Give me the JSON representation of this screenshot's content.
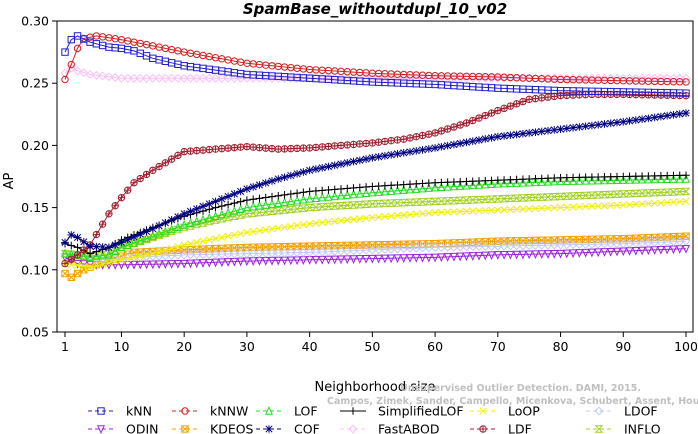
{
  "chart_data": {
    "type": "line",
    "title": "SpamBase_withoutdupl_10_v02",
    "xlabel": "Neighborhood size",
    "ylabel": "AP",
    "xlim": [
      1,
      100
    ],
    "ylim": [
      0.05,
      0.3
    ],
    "xticks": [
      1,
      10,
      20,
      30,
      40,
      50,
      60,
      70,
      80,
      90,
      100
    ],
    "yticks": [
      0.05,
      0.1,
      0.15,
      0.2,
      0.25,
      0.3
    ],
    "xtick_labels": [
      "1",
      "10",
      "20",
      "30",
      "40",
      "50",
      "60",
      "70",
      "80",
      "90",
      "100"
    ],
    "ytick_labels": [
      "0.05",
      "0.10",
      "0.15",
      "0.20",
      "0.25",
      "0.30"
    ],
    "grid": false,
    "legend_position": "bottom",
    "watermark": {
      "line1": "Unsupervised Outlier Detection. DAMI, 2015.",
      "line2": "Campos, Zimek, Sander, Campello, Micenkova, Schubert, Assent, Houle"
    },
    "series": [
      {
        "name": "kNN",
        "color": "#1f1fd0",
        "marker": "square",
        "points": [
          [
            1,
            0.275
          ],
          [
            2,
            0.285
          ],
          [
            3,
            0.288
          ],
          [
            5,
            0.283
          ],
          [
            8,
            0.279
          ],
          [
            10,
            0.278
          ],
          [
            12,
            0.276
          ],
          [
            15,
            0.27
          ],
          [
            20,
            0.264
          ],
          [
            30,
            0.257
          ],
          [
            40,
            0.254
          ],
          [
            50,
            0.251
          ],
          [
            60,
            0.249
          ],
          [
            70,
            0.246
          ],
          [
            80,
            0.244
          ],
          [
            90,
            0.243
          ],
          [
            100,
            0.242
          ]
        ]
      },
      {
        "name": "kNNW",
        "color": "#d01f1f",
        "marker": "circle",
        "points": [
          [
            1,
            0.253
          ],
          [
            2,
            0.265
          ],
          [
            3,
            0.278
          ],
          [
            4,
            0.286
          ],
          [
            6,
            0.288
          ],
          [
            10,
            0.285
          ],
          [
            15,
            0.28
          ],
          [
            20,
            0.275
          ],
          [
            30,
            0.266
          ],
          [
            40,
            0.261
          ],
          [
            50,
            0.258
          ],
          [
            60,
            0.256
          ],
          [
            70,
            0.255
          ],
          [
            80,
            0.253
          ],
          [
            90,
            0.252
          ],
          [
            100,
            0.251
          ]
        ]
      },
      {
        "name": "LOF",
        "color": "#22dd22",
        "marker": "triangle-up",
        "points": [
          [
            1,
            0.113
          ],
          [
            5,
            0.11
          ],
          [
            8,
            0.112
          ],
          [
            10,
            0.118
          ],
          [
            15,
            0.127
          ],
          [
            20,
            0.136
          ],
          [
            25,
            0.143
          ],
          [
            30,
            0.15
          ],
          [
            40,
            0.157
          ],
          [
            50,
            0.162
          ],
          [
            60,
            0.166
          ],
          [
            70,
            0.169
          ],
          [
            80,
            0.171
          ],
          [
            90,
            0.172
          ],
          [
            100,
            0.173
          ]
        ]
      },
      {
        "name": "SimplifiedLOF",
        "color": "#000000",
        "marker": "plus",
        "points": [
          [
            1,
            0.121
          ],
          [
            3,
            0.118
          ],
          [
            5,
            0.113
          ],
          [
            8,
            0.118
          ],
          [
            10,
            0.124
          ],
          [
            15,
            0.134
          ],
          [
            20,
            0.143
          ],
          [
            25,
            0.15
          ],
          [
            30,
            0.156
          ],
          [
            40,
            0.163
          ],
          [
            50,
            0.167
          ],
          [
            60,
            0.17
          ],
          [
            70,
            0.172
          ],
          [
            80,
            0.174
          ],
          [
            90,
            0.175
          ],
          [
            100,
            0.176
          ]
        ]
      },
      {
        "name": "LoOP",
        "color": "#f0f000",
        "marker": "x",
        "points": [
          [
            1,
            0.105
          ],
          [
            5,
            0.102
          ],
          [
            10,
            0.108
          ],
          [
            15,
            0.113
          ],
          [
            20,
            0.12
          ],
          [
            25,
            0.125
          ],
          [
            30,
            0.13
          ],
          [
            40,
            0.137
          ],
          [
            50,
            0.142
          ],
          [
            60,
            0.146
          ],
          [
            70,
            0.148
          ],
          [
            80,
            0.15
          ],
          [
            90,
            0.152
          ],
          [
            100,
            0.155
          ]
        ]
      },
      {
        "name": "LDOF",
        "color": "#c0c8f8",
        "marker": "diamond",
        "points": [
          [
            1,
            0.113
          ],
          [
            4,
            0.112
          ],
          [
            8,
            0.108
          ],
          [
            12,
            0.11
          ],
          [
            20,
            0.112
          ],
          [
            30,
            0.113
          ],
          [
            40,
            0.114
          ],
          [
            50,
            0.116
          ],
          [
            60,
            0.118
          ],
          [
            70,
            0.119
          ],
          [
            80,
            0.12
          ],
          [
            90,
            0.121
          ],
          [
            100,
            0.123
          ]
        ]
      },
      {
        "name": "ODIN",
        "color": "#9a22dd",
        "marker": "triangle-down",
        "points": [
          [
            1,
            0.11
          ],
          [
            3,
            0.105
          ],
          [
            6,
            0.104
          ],
          [
            10,
            0.104
          ],
          [
            20,
            0.105
          ],
          [
            30,
            0.107
          ],
          [
            40,
            0.108
          ],
          [
            50,
            0.109
          ],
          [
            60,
            0.11
          ],
          [
            70,
            0.112
          ],
          [
            80,
            0.113
          ],
          [
            90,
            0.115
          ],
          [
            100,
            0.117
          ]
        ]
      },
      {
        "name": "KDEOS",
        "color": "#f0a000",
        "marker": "square-x",
        "points": [
          [
            1,
            0.097
          ],
          [
            2,
            0.094
          ],
          [
            4,
            0.1
          ],
          [
            8,
            0.108
          ],
          [
            12,
            0.114
          ],
          [
            20,
            0.116
          ],
          [
            30,
            0.118
          ],
          [
            40,
            0.119
          ],
          [
            50,
            0.12
          ],
          [
            60,
            0.121
          ],
          [
            70,
            0.123
          ],
          [
            80,
            0.124
          ],
          [
            90,
            0.125
          ],
          [
            100,
            0.127
          ]
        ]
      },
      {
        "name": "COF",
        "color": "#000080",
        "marker": "asterisk",
        "points": [
          [
            1,
            0.122
          ],
          [
            2,
            0.128
          ],
          [
            3,
            0.126
          ],
          [
            5,
            0.119
          ],
          [
            8,
            0.118
          ],
          [
            10,
            0.122
          ],
          [
            15,
            0.133
          ],
          [
            20,
            0.145
          ],
          [
            25,
            0.155
          ],
          [
            30,
            0.165
          ],
          [
            35,
            0.173
          ],
          [
            40,
            0.18
          ],
          [
            50,
            0.19
          ],
          [
            60,
            0.198
          ],
          [
            70,
            0.207
          ],
          [
            80,
            0.213
          ],
          [
            90,
            0.219
          ],
          [
            100,
            0.226
          ]
        ]
      },
      {
        "name": "FastABOD",
        "color": "#f8c0f8",
        "marker": "diamond",
        "points": [
          [
            1,
            0.258
          ],
          [
            2,
            0.262
          ],
          [
            3,
            0.26
          ],
          [
            5,
            0.257
          ],
          [
            10,
            0.254
          ],
          [
            15,
            0.254
          ],
          [
            20,
            0.254
          ],
          [
            30,
            0.254
          ],
          [
            40,
            0.254
          ],
          [
            50,
            0.254
          ],
          [
            60,
            0.254
          ],
          [
            70,
            0.254
          ],
          [
            80,
            0.254
          ],
          [
            90,
            0.254
          ],
          [
            100,
            0.254
          ]
        ]
      },
      {
        "name": "LDF",
        "color": "#a02030",
        "marker": "circle-plus",
        "points": [
          [
            1,
            0.105
          ],
          [
            3,
            0.112
          ],
          [
            5,
            0.12
          ],
          [
            8,
            0.145
          ],
          [
            10,
            0.158
          ],
          [
            12,
            0.17
          ],
          [
            15,
            0.18
          ],
          [
            20,
            0.195
          ],
          [
            25,
            0.197
          ],
          [
            30,
            0.199
          ],
          [
            35,
            0.197
          ],
          [
            40,
            0.198
          ],
          [
            45,
            0.2
          ],
          [
            50,
            0.202
          ],
          [
            55,
            0.205
          ],
          [
            60,
            0.21
          ],
          [
            65,
            0.218
          ],
          [
            70,
            0.228
          ],
          [
            75,
            0.237
          ],
          [
            80,
            0.24
          ],
          [
            85,
            0.241
          ],
          [
            90,
            0.241
          ],
          [
            100,
            0.24
          ]
        ]
      },
      {
        "name": "INFLO",
        "color": "#a0d020",
        "marker": "hourglass",
        "points": [
          [
            1,
            0.113
          ],
          [
            5,
            0.111
          ],
          [
            8,
            0.113
          ],
          [
            10,
            0.118
          ],
          [
            15,
            0.126
          ],
          [
            20,
            0.134
          ],
          [
            25,
            0.14
          ],
          [
            30,
            0.145
          ],
          [
            40,
            0.15
          ],
          [
            50,
            0.153
          ],
          [
            60,
            0.155
          ],
          [
            70,
            0.157
          ],
          [
            80,
            0.159
          ],
          [
            90,
            0.161
          ],
          [
            100,
            0.163
          ]
        ]
      }
    ]
  }
}
